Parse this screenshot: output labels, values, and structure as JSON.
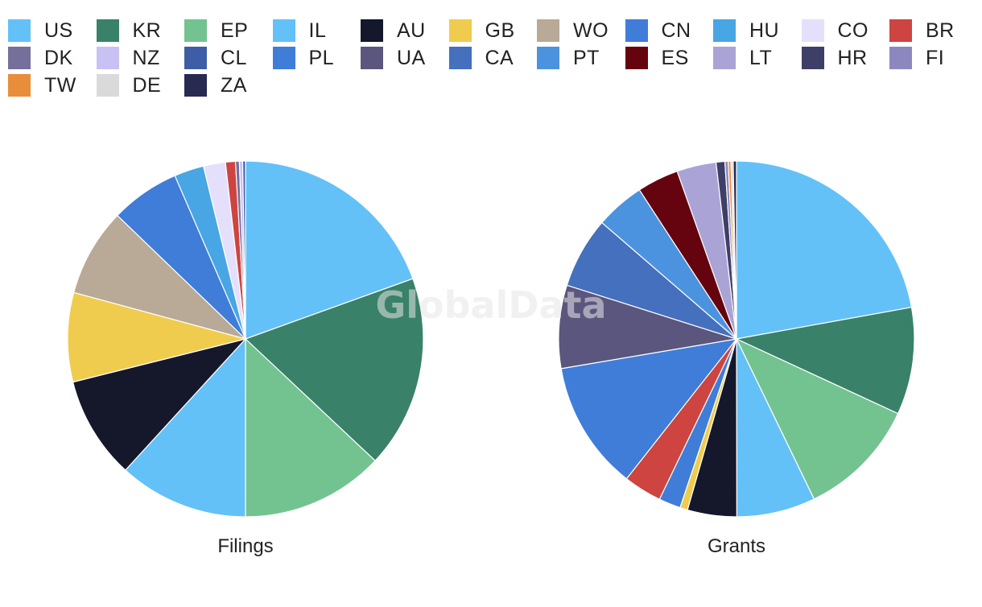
{
  "watermark": "GlobalData",
  "chart_data": [
    {
      "type": "pie",
      "title": "Filings",
      "slices": [
        {
          "label": "US",
          "value": 19.5,
          "color": "#63c1f8"
        },
        {
          "label": "KR",
          "value": 17.5,
          "color": "#3a8169"
        },
        {
          "label": "EP",
          "value": 13.0,
          "color": "#73c391"
        },
        {
          "label": "IL",
          "value": 11.8,
          "color": "#63c1f8"
        },
        {
          "label": "AU",
          "value": 9.3,
          "color": "#15172b"
        },
        {
          "label": "GB",
          "value": 8.1,
          "color": "#f0cc4e"
        },
        {
          "label": "WO",
          "value": 8.0,
          "color": "#b8aa97"
        },
        {
          "label": "CN",
          "value": 6.3,
          "color": "#3f7dd8"
        },
        {
          "label": "HU",
          "value": 2.7,
          "color": "#48a6e4"
        },
        {
          "label": "CO",
          "value": 2.0,
          "color": "#e4e0fc"
        },
        {
          "label": "BR",
          "value": 0.9,
          "color": "#cd4440"
        },
        {
          "label": "DK",
          "value": 0.35,
          "color": "#756f9c"
        },
        {
          "label": "NZ",
          "value": 0.3,
          "color": "#c8c2f4"
        },
        {
          "label": "CL",
          "value": 0.25,
          "color": "#3d5ea6"
        }
      ]
    },
    {
      "type": "pie",
      "title": "Grants",
      "slices": [
        {
          "label": "US",
          "value": 22.3,
          "color": "#63c1f8"
        },
        {
          "label": "KR",
          "value": 9.8,
          "color": "#3a8169"
        },
        {
          "label": "EP",
          "value": 11.0,
          "color": "#73c391"
        },
        {
          "label": "IL",
          "value": 7.2,
          "color": "#63c1f8"
        },
        {
          "label": "AU",
          "value": 4.5,
          "color": "#15172b"
        },
        {
          "label": "GB",
          "value": 0.7,
          "color": "#f0cc4e"
        },
        {
          "label": "PL",
          "value": 2.0,
          "color": "#3f7dd8"
        },
        {
          "label": "BR",
          "value": 3.5,
          "color": "#cd4440"
        },
        {
          "label": "CN",
          "value": 11.8,
          "color": "#3f7dd8"
        },
        {
          "label": "UA",
          "value": 7.6,
          "color": "#5b567e"
        },
        {
          "label": "CA",
          "value": 6.5,
          "color": "#4470bd"
        },
        {
          "label": "PT",
          "value": 4.5,
          "color": "#4b93de"
        },
        {
          "label": "ES",
          "value": 3.8,
          "color": "#65040f"
        },
        {
          "label": "LT",
          "value": 3.6,
          "color": "#aaa4d6"
        },
        {
          "label": "HR",
          "value": 0.8,
          "color": "#3e3f66"
        },
        {
          "label": "FI",
          "value": 0.3,
          "color": "#8c88bf"
        },
        {
          "label": "TW",
          "value": 0.25,
          "color": "#e88e3a"
        },
        {
          "label": "DE",
          "value": 0.2,
          "color": "#dadada"
        },
        {
          "label": "ZA",
          "value": 0.3,
          "color": "#282a52"
        }
      ]
    }
  ],
  "legend": [
    {
      "label": "US",
      "color": "#63c1f8"
    },
    {
      "label": "KR",
      "color": "#3a8169"
    },
    {
      "label": "EP",
      "color": "#73c391"
    },
    {
      "label": "IL",
      "color": "#63c1f8"
    },
    {
      "label": "AU",
      "color": "#15172b"
    },
    {
      "label": "GB",
      "color": "#f0cc4e"
    },
    {
      "label": "WO",
      "color": "#b8aa97"
    },
    {
      "label": "CN",
      "color": "#3f7dd8"
    },
    {
      "label": "HU",
      "color": "#48a6e4"
    },
    {
      "label": "CO",
      "color": "#e4e0fc"
    },
    {
      "label": "BR",
      "color": "#cd4440"
    },
    {
      "label": "DK",
      "color": "#756f9c"
    },
    {
      "label": "NZ",
      "color": "#c8c2f4"
    },
    {
      "label": "CL",
      "color": "#3d5ea6"
    },
    {
      "label": "PL",
      "color": "#3f7dd8"
    },
    {
      "label": "UA",
      "color": "#5b567e"
    },
    {
      "label": "CA",
      "color": "#4470bd"
    },
    {
      "label": "PT",
      "color": "#4b93de"
    },
    {
      "label": "ES",
      "color": "#65040f"
    },
    {
      "label": "LT",
      "color": "#aaa4d6"
    },
    {
      "label": "HR",
      "color": "#3e3f66"
    },
    {
      "label": "FI",
      "color": "#8c88bf"
    },
    {
      "label": "TW",
      "color": "#e88e3a"
    },
    {
      "label": "DE",
      "color": "#dadada"
    },
    {
      "label": "ZA",
      "color": "#282a52"
    }
  ]
}
